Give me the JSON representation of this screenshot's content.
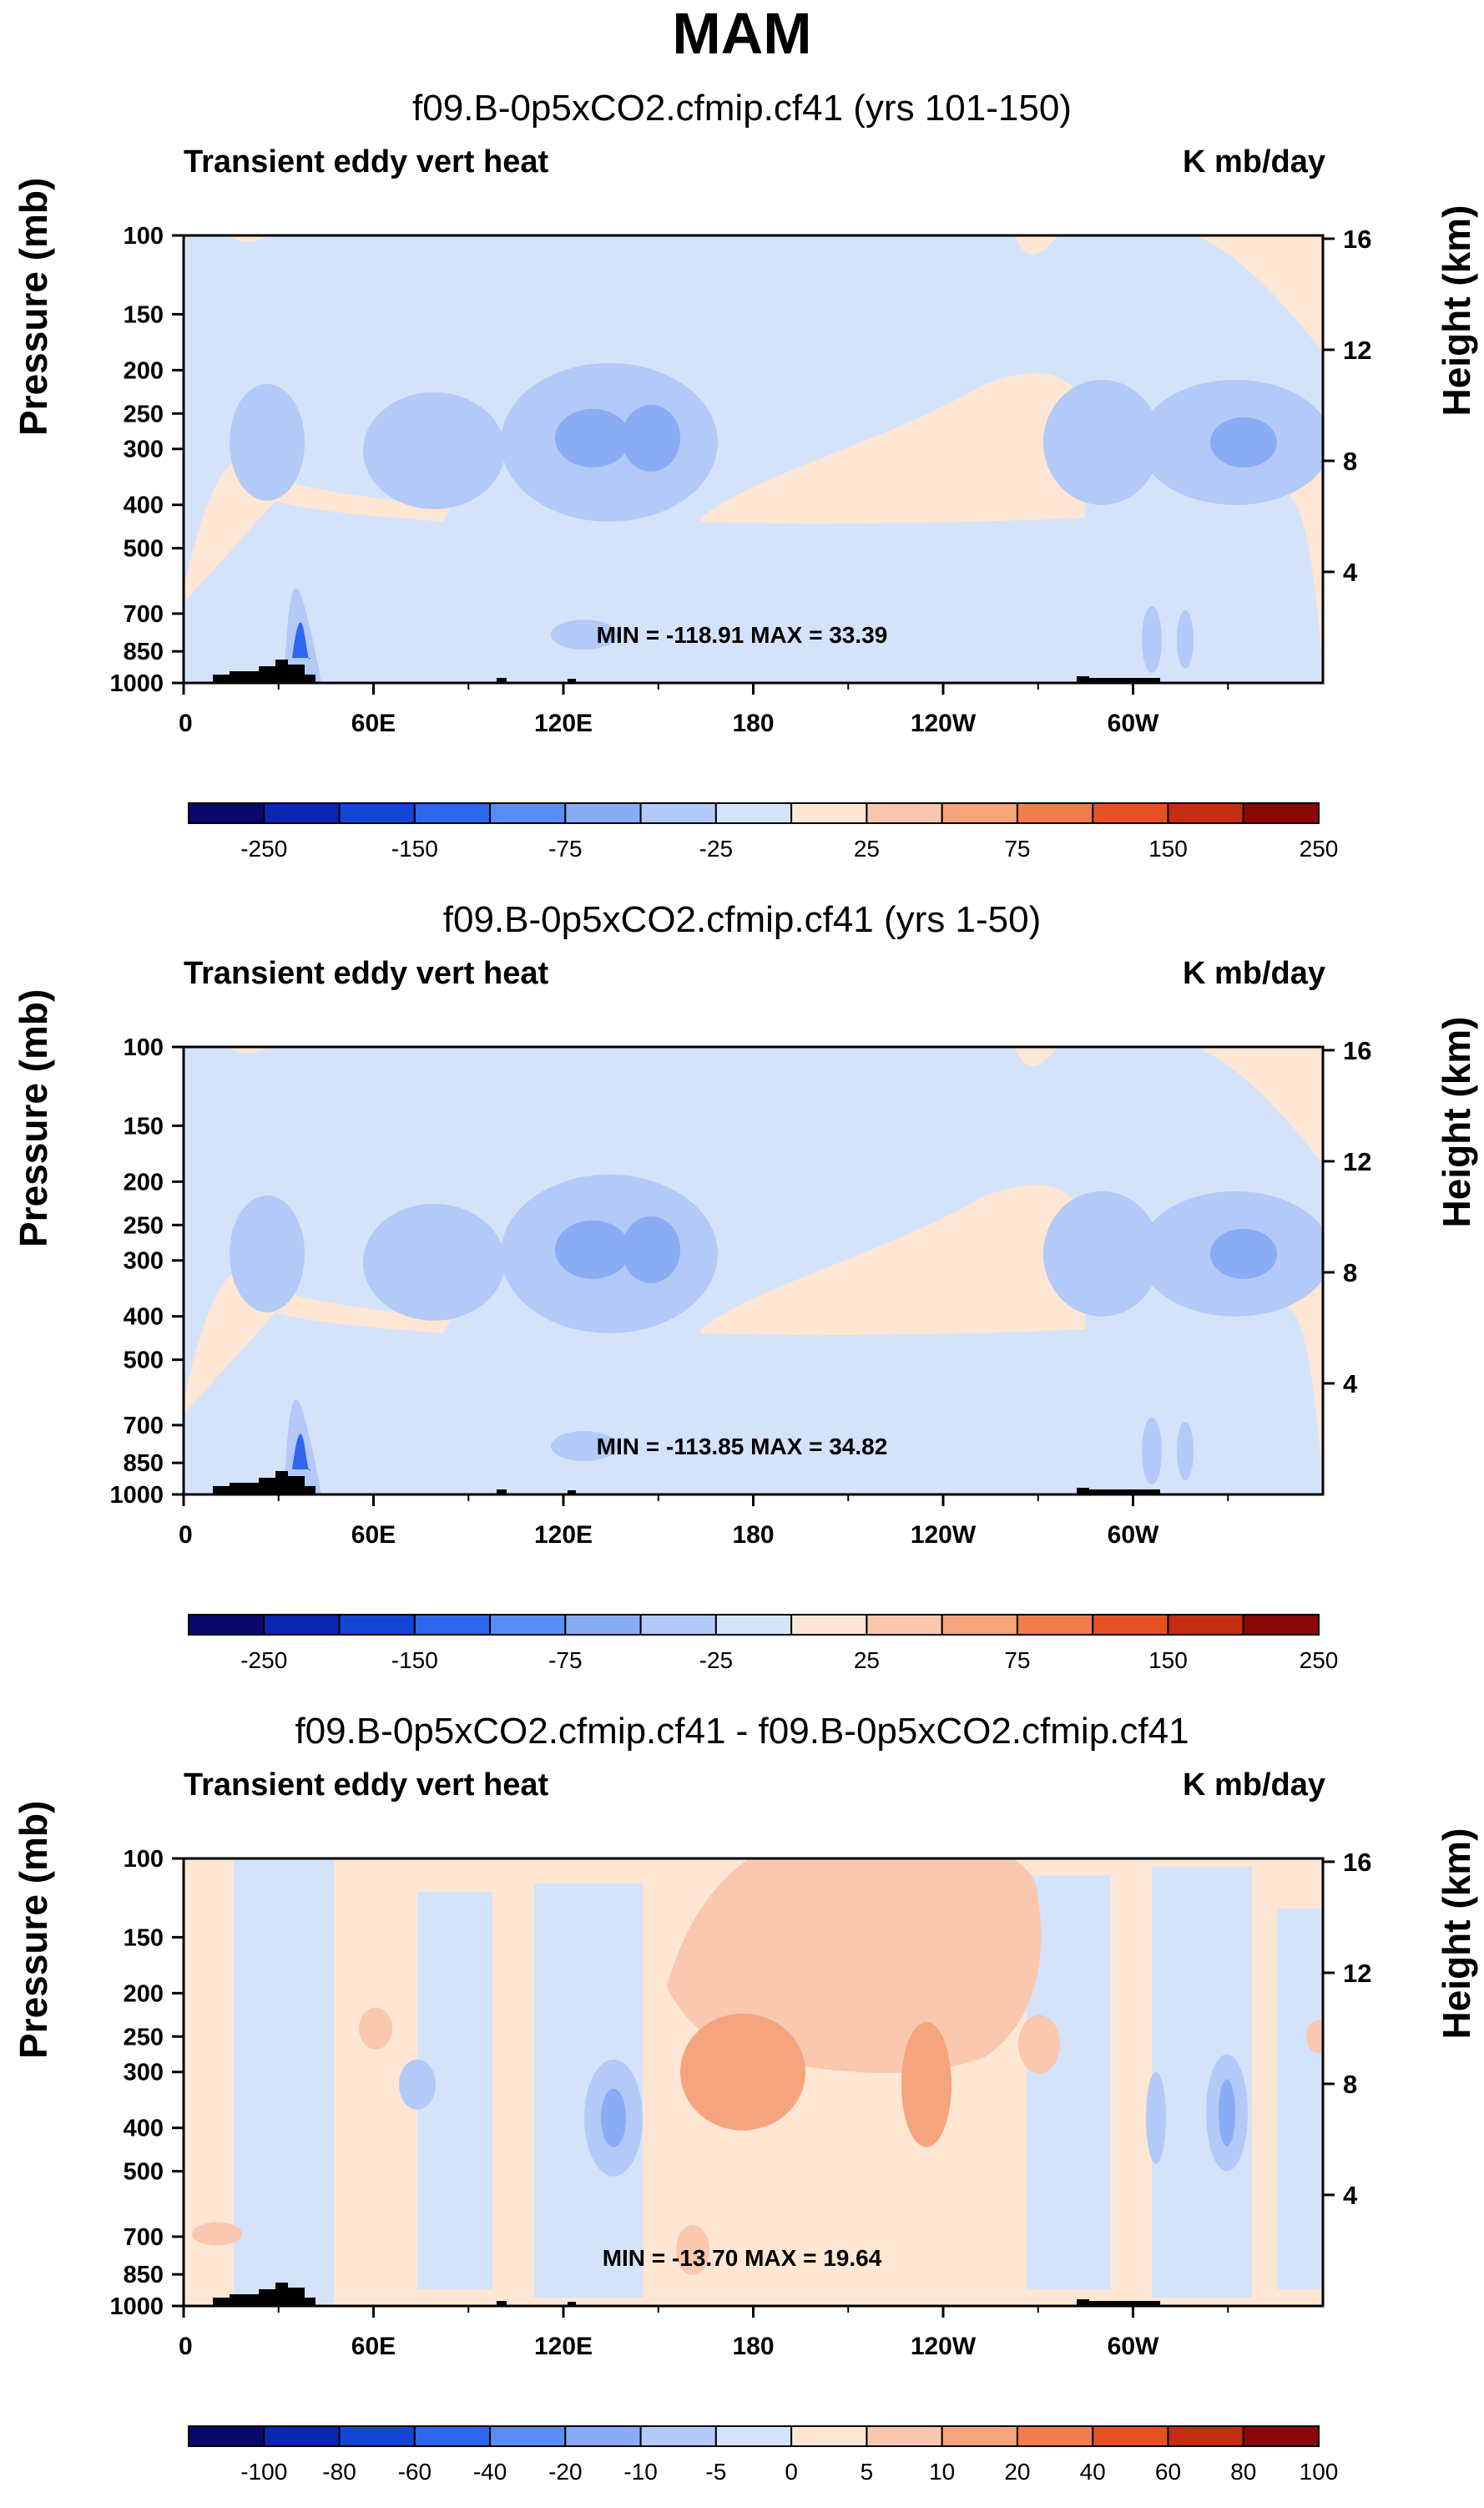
{
  "main_title": "MAM",
  "colors": {
    "palette_main": [
      "#08086b",
      "#0a26b0",
      "#1446d6",
      "#2f66ee",
      "#5a8cf5",
      "#89acf5",
      "#b3c9f7",
      "#d5e3fa",
      "#fde6d4",
      "#f9c8ae",
      "#f5a47e",
      "#f17d4f",
      "#e65124",
      "#c42d10",
      "#8b0808"
    ],
    "palette_diff": [
      "#08086b",
      "#0a26b0",
      "#1446d6",
      "#2f66ee",
      "#5a8cf5",
      "#89acf5",
      "#b3c9f7",
      "#d5e3fa",
      "#fde6d4",
      "#f9c8ae",
      "#f5a47e",
      "#f17d4f",
      "#e65124",
      "#c42d10",
      "#8b0808"
    ]
  },
  "chart_data": [
    {
      "type": "heatmap",
      "title": "f09.B-0p5xCO2.cfmip.cf41 (yrs 101-150)",
      "left_string": "Transient eddy vert heat",
      "right_string": "K mb/day",
      "ylabel": "Pressure (mb)",
      "ylabel_right": "Height (km)",
      "x_tick_labels": [
        "0",
        "60E",
        "120E",
        "180",
        "120W",
        "60W"
      ],
      "y_tick_labels": [
        "100",
        "150",
        "200",
        "250",
        "300",
        "400",
        "500",
        "700",
        "850",
        "1000"
      ],
      "y_right_tick_labels": [
        "16",
        "12",
        "8",
        "4"
      ],
      "min_max_text": "MIN = -118.91  MAX =  33.39",
      "colorbar_labels": [
        "-250",
        "-150",
        "-75",
        "-25",
        "25",
        "75",
        "150",
        "250"
      ],
      "levels": [
        -250,
        -200,
        -150,
        -100,
        -75,
        -50,
        -25,
        0,
        25,
        50,
        75,
        100,
        150,
        200,
        250
      ]
    },
    {
      "type": "heatmap",
      "title": "f09.B-0p5xCO2.cfmip.cf41 (yrs 1-50)",
      "left_string": "Transient eddy vert heat",
      "right_string": "K mb/day",
      "ylabel": "Pressure (mb)",
      "ylabel_right": "Height (km)",
      "x_tick_labels": [
        "0",
        "60E",
        "120E",
        "180",
        "120W",
        "60W"
      ],
      "y_tick_labels": [
        "100",
        "150",
        "200",
        "250",
        "300",
        "400",
        "500",
        "700",
        "850",
        "1000"
      ],
      "y_right_tick_labels": [
        "16",
        "12",
        "8",
        "4"
      ],
      "min_max_text": "MIN = -113.85  MAX =  34.82",
      "colorbar_labels": [
        "-250",
        "-150",
        "-75",
        "-25",
        "25",
        "75",
        "150",
        "250"
      ],
      "levels": [
        -250,
        -200,
        -150,
        -100,
        -75,
        -50,
        -25,
        0,
        25,
        50,
        75,
        100,
        150,
        200,
        250
      ]
    },
    {
      "type": "heatmap",
      "title": "f09.B-0p5xCO2.cfmip.cf41 - f09.B-0p5xCO2.cfmip.cf41",
      "left_string": "Transient eddy vert heat",
      "right_string": "K mb/day",
      "ylabel": "Pressure (mb)",
      "ylabel_right": "Height (km)",
      "x_tick_labels": [
        "0",
        "60E",
        "120E",
        "180",
        "120W",
        "60W"
      ],
      "y_tick_labels": [
        "100",
        "150",
        "200",
        "250",
        "300",
        "400",
        "500",
        "700",
        "850",
        "1000"
      ],
      "y_right_tick_labels": [
        "16",
        "12",
        "8",
        "4"
      ],
      "min_max_text": "MIN = -13.70  MAX = 19.64",
      "colorbar_labels": [
        "-100",
        "-80",
        "-60",
        "-40",
        "-20",
        "-10",
        "-5",
        "0",
        "5",
        "10",
        "20",
        "40",
        "60",
        "80",
        "100"
      ],
      "levels": [
        -100,
        -80,
        -60,
        -40,
        -20,
        -10,
        -5,
        0,
        5,
        10,
        20,
        40,
        60,
        80,
        100
      ]
    }
  ]
}
